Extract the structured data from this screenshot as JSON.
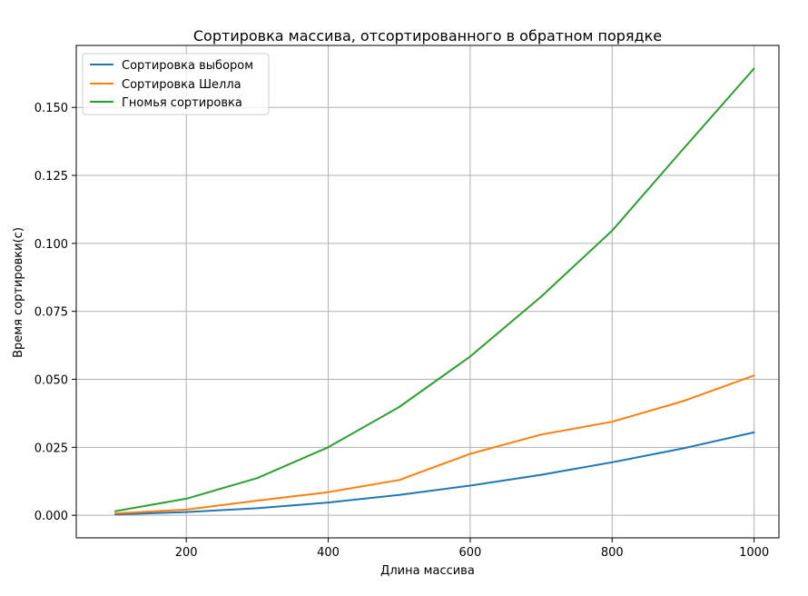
{
  "chart_data": {
    "type": "line",
    "title": "Сортировка массива, отсортированного в обратном порядке",
    "xlabel": "Длина массива",
    "ylabel": "Время сортировки(с)",
    "x": [
      100,
      200,
      300,
      400,
      500,
      600,
      700,
      800,
      900,
      1000
    ],
    "xlim": [
      45,
      1035
    ],
    "ylim": [
      -0.0083,
      0.1728
    ],
    "xticks": [
      200,
      400,
      600,
      800,
      1000
    ],
    "yticks": [
      0.0,
      0.025,
      0.05,
      0.075,
      0.1,
      0.125,
      0.15
    ],
    "yticks_labels": [
      "0.000",
      "0.025",
      "0.050",
      "0.075",
      "0.100",
      "0.125",
      "0.150"
    ],
    "grid": true,
    "legend_position": "top-left",
    "series": [
      {
        "name": "Сортировка выбором",
        "color": "#1f77b4",
        "values": [
          0.0003,
          0.0012,
          0.0026,
          0.0047,
          0.0075,
          0.0109,
          0.0149,
          0.0195,
          0.0246,
          0.0305
        ]
      },
      {
        "name": "Сортировка Шелла",
        "color": "#ff7f0e",
        "values": [
          0.0007,
          0.0021,
          0.0054,
          0.0085,
          0.013,
          0.0226,
          0.0297,
          0.0344,
          0.042,
          0.0514
        ]
      },
      {
        "name": "Гномья сортировка",
        "color": "#2ca02c",
        "values": [
          0.0015,
          0.0061,
          0.0137,
          0.025,
          0.0398,
          0.0584,
          0.0804,
          0.1047,
          0.1347,
          0.1643
        ]
      }
    ]
  }
}
